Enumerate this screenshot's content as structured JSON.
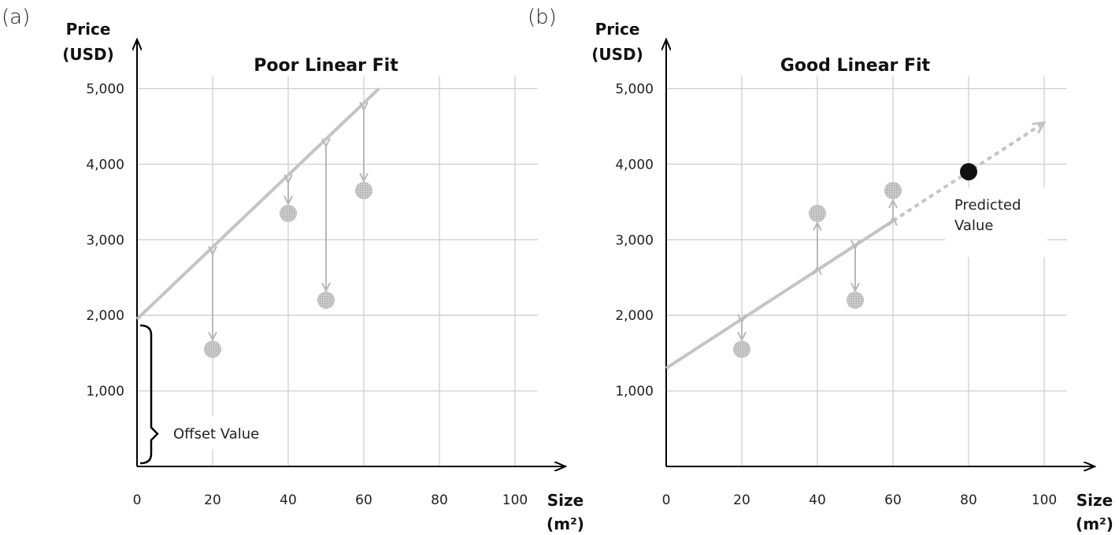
{
  "chart_data": [
    {
      "type": "scatter",
      "panel_label": "(a)",
      "title": "Poor Linear Fit",
      "xlabel": [
        "Size",
        "(m²)"
      ],
      "ylabel": [
        "Price",
        "(USD)"
      ],
      "xlim": [
        0,
        110
      ],
      "ylim": [
        0,
        5500
      ],
      "x_ticks": [
        0,
        20,
        40,
        60,
        80,
        100
      ],
      "y_ticks": [
        1000,
        2000,
        3000,
        4000,
        5000
      ],
      "y_tick_labels": [
        "1,000",
        "2,000",
        "3,000",
        "4,000",
        "5,000"
      ],
      "grid": true,
      "series": [
        {
          "x": [
            20,
            40,
            50,
            60
          ],
          "y": [
            1550,
            3350,
            2200,
            3650
          ]
        }
      ],
      "fit_line": {
        "x": [
          0,
          64
        ],
        "y": [
          1950,
          5000
        ]
      },
      "fit_values": [
        2850,
        3800,
        4280,
        4760
      ],
      "annotations": [
        {
          "text": "Offset Value",
          "y_range": [
            0,
            1950
          ]
        }
      ]
    },
    {
      "type": "scatter",
      "panel_label": "(b)",
      "title": "Good Linear Fit",
      "xlabel": [
        "Size",
        "(m²)"
      ],
      "ylabel": [
        "Price",
        "(USD)"
      ],
      "xlim": [
        0,
        110
      ],
      "ylim": [
        0,
        5500
      ],
      "x_ticks": [
        0,
        20,
        40,
        60,
        80,
        100
      ],
      "y_ticks": [
        1000,
        2000,
        3000,
        4000,
        5000
      ],
      "y_tick_labels": [
        "1,000",
        "2,000",
        "3,000",
        "4,000",
        "5,000"
      ],
      "grid": true,
      "series": [
        {
          "x": [
            20,
            40,
            50,
            60
          ],
          "y": [
            1550,
            3350,
            2200,
            3650
          ]
        }
      ],
      "fit_line": {
        "x": [
          0,
          60
        ],
        "y": [
          1300,
          3250
        ]
      },
      "fit_values": [
        1950,
        2600,
        2930,
        3250
      ],
      "extrapolation": {
        "x": [
          60,
          100
        ],
        "y": [
          3250,
          4550
        ]
      },
      "predicted_point": {
        "x": 80,
        "y": 3900
      },
      "annotations": [
        {
          "text": [
            "Predicted",
            "Value"
          ],
          "x": 80,
          "y": 3900
        }
      ]
    }
  ]
}
